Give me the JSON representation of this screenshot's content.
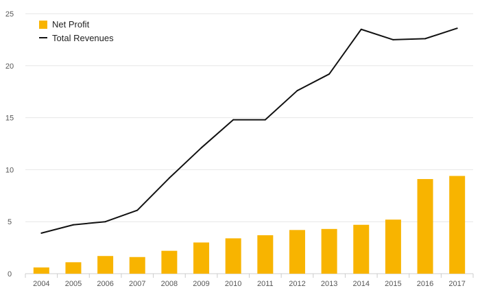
{
  "chart_data": {
    "type": "bar",
    "title": "",
    "xlabel": "",
    "ylabel": "",
    "categories": [
      "2004",
      "2005",
      "2006",
      "2007",
      "2008",
      "2009",
      "2010",
      "2011",
      "2012",
      "2013",
      "2014",
      "2015",
      "2016",
      "2017"
    ],
    "series": [
      {
        "name": "Net Profit",
        "type": "bar",
        "color": "#f8b400",
        "values": [
          0.6,
          1.1,
          1.7,
          1.6,
          2.2,
          3.0,
          3.4,
          3.7,
          4.2,
          4.3,
          4.7,
          5.2,
          9.1,
          9.4
        ]
      },
      {
        "name": "Total Revenues",
        "type": "line",
        "color": "#111111",
        "values": [
          3.9,
          4.7,
          5.0,
          6.1,
          9.2,
          12.1,
          14.8,
          14.8,
          17.6,
          19.2,
          23.5,
          22.5,
          22.6,
          23.6
        ]
      }
    ],
    "ylim": [
      0,
      25
    ],
    "yticks": [
      0,
      5,
      10,
      15,
      20,
      25
    ],
    "grid": true,
    "legend_position": "top-left"
  }
}
